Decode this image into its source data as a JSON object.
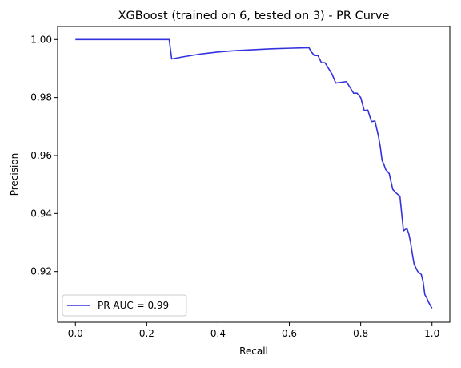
{
  "chart_data": {
    "type": "line",
    "title": "XGBoost (trained on 6, tested on 3) -  PR Curve",
    "xlabel": "Recall",
    "ylabel": "Precision",
    "xlim": [
      -0.05,
      1.05
    ],
    "ylim": [
      0.9025,
      1.0045
    ],
    "xticks": [
      0.0,
      0.2,
      0.4,
      0.6,
      0.8,
      1.0
    ],
    "xtick_labels": [
      "0.0",
      "0.2",
      "0.4",
      "0.6",
      "0.8",
      "1.0"
    ],
    "yticks": [
      0.92,
      0.94,
      0.96,
      0.98,
      1.0
    ],
    "ytick_labels": [
      "0.92",
      "0.94",
      "0.96",
      "0.98",
      "1.00"
    ],
    "grid": false,
    "legend_position": "lower-left",
    "series": [
      {
        "name": "PR AUC = 0.99",
        "color": "#3333dd",
        "x": [
          0.0,
          0.05,
          0.1,
          0.15,
          0.2,
          0.25,
          0.263,
          0.27,
          0.3,
          0.35,
          0.4,
          0.45,
          0.5,
          0.55,
          0.6,
          0.655,
          0.66,
          0.67,
          0.68,
          0.69,
          0.7,
          0.72,
          0.73,
          0.76,
          0.78,
          0.79,
          0.8,
          0.81,
          0.82,
          0.83,
          0.84,
          0.85,
          0.855,
          0.86,
          0.865,
          0.87,
          0.88,
          0.885,
          0.89,
          0.9,
          0.91,
          0.915,
          0.92,
          0.925,
          0.93,
          0.935,
          0.94,
          0.945,
          0.95,
          0.96,
          0.965,
          0.97,
          0.975,
          0.98,
          0.985,
          0.99,
          1.0
        ],
        "y": [
          1.0,
          1.0,
          1.0,
          1.0,
          1.0,
          1.0,
          1.0,
          0.9933,
          0.994,
          0.995,
          0.9957,
          0.9962,
          0.9965,
          0.9968,
          0.997,
          0.9972,
          0.996,
          0.9945,
          0.9945,
          0.992,
          0.992,
          0.988,
          0.985,
          0.9855,
          0.9815,
          0.9815,
          0.98,
          0.9755,
          0.9757,
          0.9717,
          0.9719,
          0.9665,
          0.963,
          0.9583,
          0.957,
          0.9552,
          0.9538,
          0.951,
          0.9483,
          0.947,
          0.946,
          0.94,
          0.934,
          0.9345,
          0.9347,
          0.933,
          0.93,
          0.926,
          0.9225,
          0.92,
          0.9195,
          0.919,
          0.9165,
          0.912,
          0.911,
          0.9095,
          0.9073
        ]
      }
    ]
  }
}
